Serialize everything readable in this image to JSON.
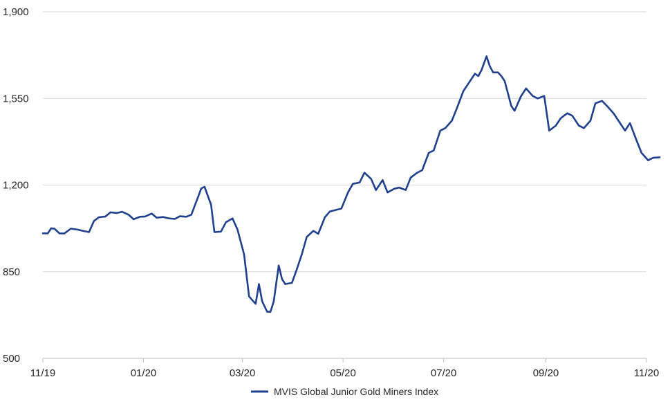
{
  "chart_data": {
    "type": "line",
    "title": "",
    "xlabel": "",
    "ylabel": "",
    "ylim": [
      500,
      1900
    ],
    "y_ticks": [
      "1,900",
      "1,550",
      "1,200",
      "850",
      "500"
    ],
    "y_tick_values": [
      1900,
      1550,
      1200,
      850,
      500
    ],
    "x_tick_labels": [
      "11/19",
      "01/20",
      "03/20",
      "05/20",
      "07/20",
      "09/20",
      "11/20"
    ],
    "x_tick_dates": [
      "2019-11-01",
      "2020-01-01",
      "2020-03-01",
      "2020-05-01",
      "2020-07-01",
      "2020-09-01",
      "2020-11-01"
    ],
    "grid": true,
    "legend_position": "bottom",
    "colors": {
      "series": "#1f3f8f",
      "grid": "#d9d9d9",
      "text": "#262626"
    },
    "series": [
      {
        "name": "MVIS Global Junior Gold Miners Index",
        "points": [
          [
            "2019-11-01",
            1005
          ],
          [
            "2019-11-04",
            1005
          ],
          [
            "2019-11-06",
            1025
          ],
          [
            "2019-11-08",
            1024
          ],
          [
            "2019-11-11",
            1005
          ],
          [
            "2019-11-14",
            1004
          ],
          [
            "2019-11-18",
            1024
          ],
          [
            "2019-11-22",
            1020
          ],
          [
            "2019-11-26",
            1014
          ],
          [
            "2019-11-29",
            1010
          ],
          [
            "2019-12-02",
            1055
          ],
          [
            "2019-12-05",
            1070
          ],
          [
            "2019-12-09",
            1073
          ],
          [
            "2019-12-12",
            1090
          ],
          [
            "2019-12-16",
            1087
          ],
          [
            "2019-12-19",
            1092
          ],
          [
            "2019-12-23",
            1080
          ],
          [
            "2019-12-26",
            1062
          ],
          [
            "2019-12-30",
            1072
          ],
          [
            "2020-01-02",
            1073
          ],
          [
            "2020-01-06",
            1085
          ],
          [
            "2020-01-09",
            1068
          ],
          [
            "2020-01-13",
            1071
          ],
          [
            "2020-01-16",
            1066
          ],
          [
            "2020-01-20",
            1063
          ],
          [
            "2020-01-23",
            1074
          ],
          [
            "2020-01-27",
            1072
          ],
          [
            "2020-01-30",
            1080
          ],
          [
            "2020-02-03",
            1150
          ],
          [
            "2020-02-05",
            1186
          ],
          [
            "2020-02-07",
            1193
          ],
          [
            "2020-02-11",
            1120
          ],
          [
            "2020-02-13",
            1010
          ],
          [
            "2020-02-17",
            1012
          ],
          [
            "2020-02-20",
            1050
          ],
          [
            "2020-02-24",
            1065
          ],
          [
            "2020-02-27",
            1020
          ],
          [
            "2020-03-02",
            920
          ],
          [
            "2020-03-05",
            750
          ],
          [
            "2020-03-09",
            720
          ],
          [
            "2020-03-11",
            800
          ],
          [
            "2020-03-13",
            730
          ],
          [
            "2020-03-16",
            688
          ],
          [
            "2020-03-18",
            688
          ],
          [
            "2020-03-20",
            730
          ],
          [
            "2020-03-23",
            875
          ],
          [
            "2020-03-25",
            820
          ],
          [
            "2020-03-27",
            800
          ],
          [
            "2020-03-31",
            805
          ],
          [
            "2020-04-03",
            860
          ],
          [
            "2020-04-06",
            920
          ],
          [
            "2020-04-09",
            990
          ],
          [
            "2020-04-13",
            1015
          ],
          [
            "2020-04-16",
            1003
          ],
          [
            "2020-04-20",
            1070
          ],
          [
            "2020-04-23",
            1093
          ],
          [
            "2020-04-27",
            1100
          ],
          [
            "2020-04-30",
            1105
          ],
          [
            "2020-05-04",
            1170
          ],
          [
            "2020-05-07",
            1205
          ],
          [
            "2020-05-11",
            1210
          ],
          [
            "2020-05-14",
            1250
          ],
          [
            "2020-05-18",
            1225
          ],
          [
            "2020-05-21",
            1180
          ],
          [
            "2020-05-25",
            1220
          ],
          [
            "2020-05-28",
            1170
          ],
          [
            "2020-06-01",
            1185
          ],
          [
            "2020-06-04",
            1190
          ],
          [
            "2020-06-08",
            1180
          ],
          [
            "2020-06-11",
            1230
          ],
          [
            "2020-06-15",
            1250
          ],
          [
            "2020-06-18",
            1260
          ],
          [
            "2020-06-22",
            1330
          ],
          [
            "2020-06-25",
            1340
          ],
          [
            "2020-06-29",
            1420
          ],
          [
            "2020-07-02",
            1430
          ],
          [
            "2020-07-06",
            1460
          ],
          [
            "2020-07-09",
            1510
          ],
          [
            "2020-07-13",
            1580
          ],
          [
            "2020-07-16",
            1610
          ],
          [
            "2020-07-20",
            1650
          ],
          [
            "2020-07-22",
            1640
          ],
          [
            "2020-07-24",
            1665
          ],
          [
            "2020-07-27",
            1720
          ],
          [
            "2020-07-29",
            1680
          ],
          [
            "2020-07-31",
            1655
          ],
          [
            "2020-08-03",
            1655
          ],
          [
            "2020-08-05",
            1640
          ],
          [
            "2020-08-07",
            1620
          ],
          [
            "2020-08-11",
            1520
          ],
          [
            "2020-08-13",
            1500
          ],
          [
            "2020-08-17",
            1560
          ],
          [
            "2020-08-20",
            1590
          ],
          [
            "2020-08-24",
            1560
          ],
          [
            "2020-08-27",
            1550
          ],
          [
            "2020-08-31",
            1560
          ],
          [
            "2020-09-03",
            1420
          ],
          [
            "2020-09-07",
            1440
          ],
          [
            "2020-09-10",
            1470
          ],
          [
            "2020-09-14",
            1490
          ],
          [
            "2020-09-17",
            1480
          ],
          [
            "2020-09-21",
            1440
          ],
          [
            "2020-09-24",
            1430
          ],
          [
            "2020-09-28",
            1460
          ],
          [
            "2020-10-01",
            1530
          ],
          [
            "2020-10-05",
            1540
          ],
          [
            "2020-10-08",
            1520
          ],
          [
            "2020-10-12",
            1490
          ],
          [
            "2020-10-15",
            1460
          ],
          [
            "2020-10-19",
            1420
          ],
          [
            "2020-10-22",
            1450
          ],
          [
            "2020-10-26",
            1380
          ],
          [
            "2020-10-29",
            1330
          ],
          [
            "2020-11-02",
            1300
          ],
          [
            "2020-11-05",
            1310
          ],
          [
            "2020-11-09",
            1312
          ]
        ]
      }
    ]
  }
}
